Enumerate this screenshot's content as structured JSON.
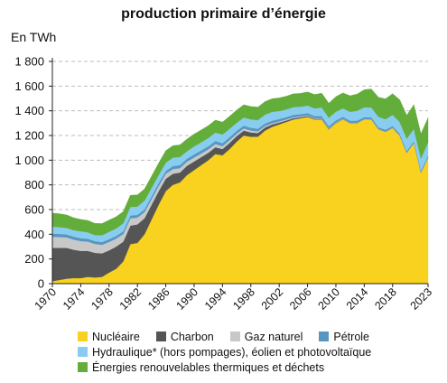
{
  "chart_data": {
    "type": "area",
    "stacked": true,
    "title": "production primaire d’énergie",
    "ylabel": "En TWh",
    "xlabel": "",
    "ylim": [
      0,
      1800
    ],
    "yticks": [
      0,
      200,
      400,
      600,
      800,
      1000,
      1200,
      1400,
      1600,
      1800
    ],
    "y_tick_labels": [
      "0",
      "200",
      "400",
      "600",
      "800",
      "1 000",
      "1 200",
      "1 400",
      "1 600",
      "1 800"
    ],
    "xlim": [
      1970,
      2023
    ],
    "xticks": [
      1970,
      1974,
      1978,
      1982,
      1986,
      1990,
      1994,
      1998,
      2002,
      2006,
      2010,
      2014,
      2018,
      2023
    ],
    "grid": "horizontal dashed",
    "legend_position": "bottom",
    "x": [
      1970,
      1971,
      1972,
      1973,
      1974,
      1975,
      1976,
      1977,
      1978,
      1979,
      1980,
      1981,
      1982,
      1983,
      1984,
      1985,
      1986,
      1987,
      1988,
      1989,
      1990,
      1991,
      1992,
      1993,
      1994,
      1995,
      1996,
      1997,
      1998,
      1999,
      2000,
      2001,
      2002,
      2003,
      2004,
      2005,
      2006,
      2007,
      2008,
      2009,
      2010,
      2011,
      2012,
      2013,
      2014,
      2015,
      2016,
      2017,
      2018,
      2019,
      2020,
      2021,
      2022,
      2023
    ],
    "series": [
      {
        "name": "Nucléaire",
        "color": "#f9d21f",
        "values": [
          20,
          30,
          40,
          45,
          45,
          55,
          50,
          55,
          90,
          120,
          180,
          320,
          330,
          400,
          520,
          640,
          750,
          800,
          820,
          880,
          920,
          960,
          1000,
          1050,
          1040,
          1090,
          1150,
          1200,
          1190,
          1190,
          1240,
          1270,
          1290,
          1310,
          1330,
          1340,
          1350,
          1330,
          1330,
          1250,
          1300,
          1330,
          1300,
          1300,
          1330,
          1330,
          1250,
          1230,
          1260,
          1200,
          1060,
          1140,
          900,
          1020
        ]
      },
      {
        "name": "Charbon",
        "color": "#555555",
        "values": [
          270,
          260,
          250,
          230,
          220,
          210,
          200,
          190,
          180,
          180,
          160,
          150,
          150,
          130,
          120,
          110,
          100,
          90,
          80,
          75,
          70,
          65,
          60,
          55,
          50,
          50,
          45,
          40,
          35,
          30,
          25,
          20,
          15,
          12,
          10,
          8,
          7,
          5,
          5,
          5,
          3,
          2,
          2,
          2,
          1,
          1,
          1,
          1,
          1,
          0,
          0,
          0,
          0,
          0
        ]
      },
      {
        "name": "Gaz naturel",
        "color": "#c8c8c8",
        "values": [
          90,
          88,
          85,
          82,
          80,
          76,
          72,
          70,
          68,
          65,
          62,
          60,
          55,
          50,
          45,
          42,
          40,
          38,
          36,
          34,
          32,
          30,
          28,
          26,
          24,
          22,
          20,
          18,
          16,
          14,
          12,
          10,
          9,
          8,
          8,
          7,
          6,
          6,
          5,
          5,
          4,
          4,
          3,
          3,
          3,
          2,
          2,
          2,
          2,
          1,
          1,
          1,
          1,
          1
        ]
      },
      {
        "name": "Pétrole",
        "color": "#5896c2",
        "values": [
          25,
          25,
          24,
          24,
          23,
          23,
          23,
          22,
          22,
          22,
          22,
          22,
          22,
          22,
          23,
          23,
          23,
          24,
          24,
          24,
          25,
          25,
          25,
          25,
          24,
          24,
          23,
          22,
          22,
          21,
          20,
          20,
          20,
          19,
          19,
          18,
          18,
          17,
          17,
          16,
          16,
          16,
          15,
          15,
          15,
          14,
          14,
          14,
          14,
          14,
          13,
          13,
          13,
          13
        ]
      },
      {
        "name": "Hydraulique* (hors pompages), éolien et photovoltaïque",
        "color": "#88cdef",
        "values": [
          57,
          55,
          53,
          53,
          56,
          52,
          48,
          55,
          60,
          60,
          65,
          70,
          68,
          70,
          68,
          66,
          67,
          69,
          66,
          60,
          65,
          65,
          67,
          68,
          70,
          68,
          65,
          66,
          68,
          70,
          72,
          72,
          64,
          62,
          63,
          60,
          62,
          62,
          70,
          68,
          70,
          68,
          72,
          80,
          80,
          80,
          85,
          85,
          90,
          95,
          100,
          100,
          100,
          110
        ]
      },
      {
        "name": "Énergies renouvelables thermiques et déchets",
        "color": "#63ad3a",
        "values": [
          110,
          108,
          105,
          100,
          96,
          96,
          95,
          95,
          95,
          95,
          95,
          94,
          94,
          95,
          95,
          96,
          97,
          97,
          98,
          99,
          100,
          100,
          100,
          101,
          101,
          102,
          103,
          103,
          104,
          105,
          106,
          106,
          107,
          107,
          108,
          108,
          110,
          112,
          116,
          118,
          122,
          125,
          130,
          136,
          142,
          150,
          158,
          165,
          172,
          180,
          190,
          196,
          200,
          200
        ]
      }
    ]
  },
  "legend": {
    "nucleaire": "Nucléaire",
    "charbon": "Charbon",
    "gaz": "Gaz naturel",
    "petrole": "Pétrole",
    "hydraulique": "Hydraulique* (hors pompages), éolien et photovoltaïque",
    "enrt": "Énergies renouvelables thermiques et déchets"
  },
  "colors": {
    "nucleaire": "#f9d21f",
    "charbon": "#555555",
    "gaz": "#c8c8c8",
    "petrole": "#5896c2",
    "hydraulique": "#88cdef",
    "enrt": "#63ad3a"
  }
}
